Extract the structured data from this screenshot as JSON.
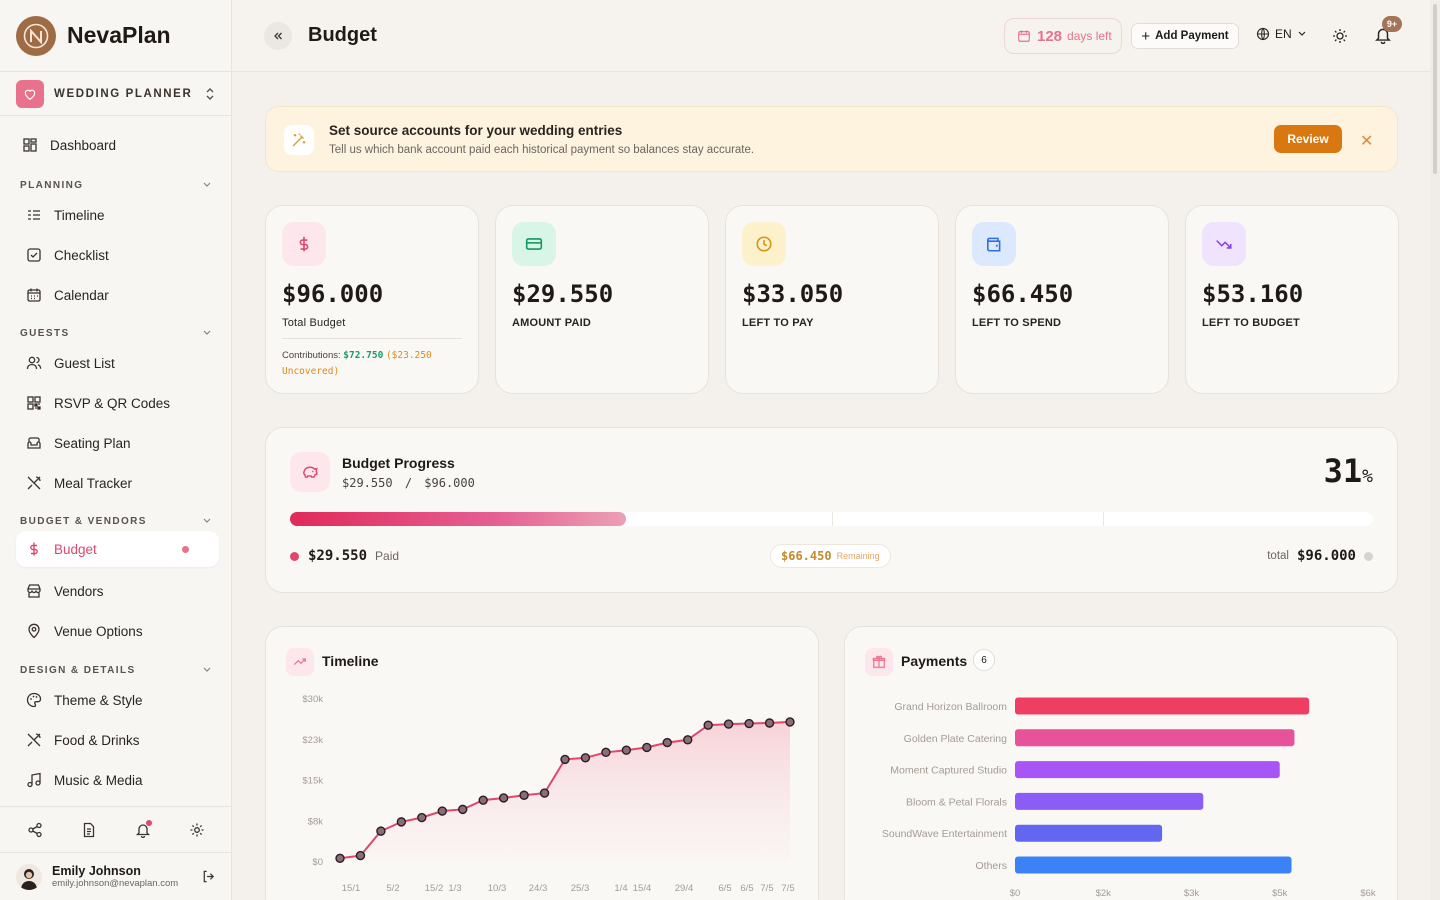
{
  "app": {
    "name": "NevaPlan",
    "project": "WEDDING PLANNER"
  },
  "nav": {
    "dashboard": "Dashboard",
    "sections": {
      "planning": "PLANNING",
      "guests": "GUESTS",
      "budget": "BUDGET & VENDORS",
      "design": "DESIGN & DETAILS"
    },
    "timeline": "Timeline",
    "checklist": "Checklist",
    "calendar": "Calendar",
    "guest_list": "Guest List",
    "rsvp": "RSVP & QR Codes",
    "seating": "Seating Plan",
    "meal": "Meal Tracker",
    "budget": "Budget",
    "vendors": "Vendors",
    "venue": "Venue Options",
    "theme": "Theme & Style",
    "food": "Food & Drinks",
    "music": "Music & Media"
  },
  "user": {
    "name": "Emily Johnson",
    "email": "emily.johnson@nevaplan.com"
  },
  "topbar": {
    "title": "Budget",
    "days_count": "128",
    "days_label": "days left",
    "add_payment": "Add Payment",
    "language": "EN",
    "notif_badge": "9+"
  },
  "banner": {
    "title": "Set source accounts for your wedding entries",
    "subtitle": "Tell us which bank account paid each historical payment so balances stay accurate.",
    "action": "Review"
  },
  "stats": [
    {
      "value": "$96.000",
      "label": "Total Budget"
    },
    {
      "value": "$29.550",
      "label": "AMOUNT PAID"
    },
    {
      "value": "$33.050",
      "label": "LEFT TO PAY"
    },
    {
      "value": "$66.450",
      "label": "LEFT TO SPEND"
    },
    {
      "value": "$53.160",
      "label": "LEFT TO BUDGET"
    }
  ],
  "contrib": {
    "label": "Contributions:",
    "covered": "$72.750",
    "uncovered": "($23.250 Uncovered)"
  },
  "progress": {
    "title": "Budget Progress",
    "paid": "$29.550",
    "separator": "/",
    "total": "$96.000",
    "percent": "31",
    "percent_sign": "%",
    "fraction": 0.31,
    "paid_label": "Paid",
    "remaining": "$66.450",
    "remaining_label": "Remaining",
    "total_label": "total"
  },
  "colors": {
    "accent": "#e0466e",
    "brand": "#9e6b45",
    "review": "#d97710"
  },
  "timeline": {
    "title": "Timeline",
    "chart_data": {
      "type": "line",
      "y_ticks": [
        "$30k",
        "$23k",
        "$15k",
        "$8k",
        "$0"
      ],
      "x_ticks": [
        "15/1",
        "5/2",
        "15/2",
        "1/3",
        "10/3",
        "24/3",
        "25/3",
        "1/4",
        "15/4",
        "29/4",
        "6/5",
        "6/5",
        "7/5",
        "7/5"
      ],
      "ylim": [
        0,
        30000
      ],
      "series": [
        {
          "values": [
            500,
            1000,
            5500,
            7200,
            8000,
            9200,
            9500,
            11200,
            11600,
            12100,
            12500,
            18700,
            19000,
            20000,
            20400,
            20900,
            21800,
            22300,
            25000,
            25200,
            25300,
            25400,
            25600
          ]
        }
      ]
    }
  },
  "payments": {
    "title": "Payments",
    "count": "6",
    "chart_data": {
      "type": "bar",
      "orientation": "horizontal",
      "categories": [
        "Grand Horizon Ballroom",
        "Golden Plate Catering",
        "Moment Captured Studio",
        "Bloom & Petal Florals",
        "SoundWave Entertainment",
        "Others"
      ],
      "values": [
        5000,
        4750,
        4500,
        3200,
        2500,
        4700
      ],
      "colors": [
        "#ee3e62",
        "#e8529a",
        "#a855f7",
        "#8b5cf6",
        "#6366f1",
        "#3b82f6"
      ],
      "x_ticks": [
        "$0",
        "$2k",
        "$3k",
        "$5k",
        "$6k"
      ],
      "xlim": [
        0,
        6000
      ]
    }
  }
}
